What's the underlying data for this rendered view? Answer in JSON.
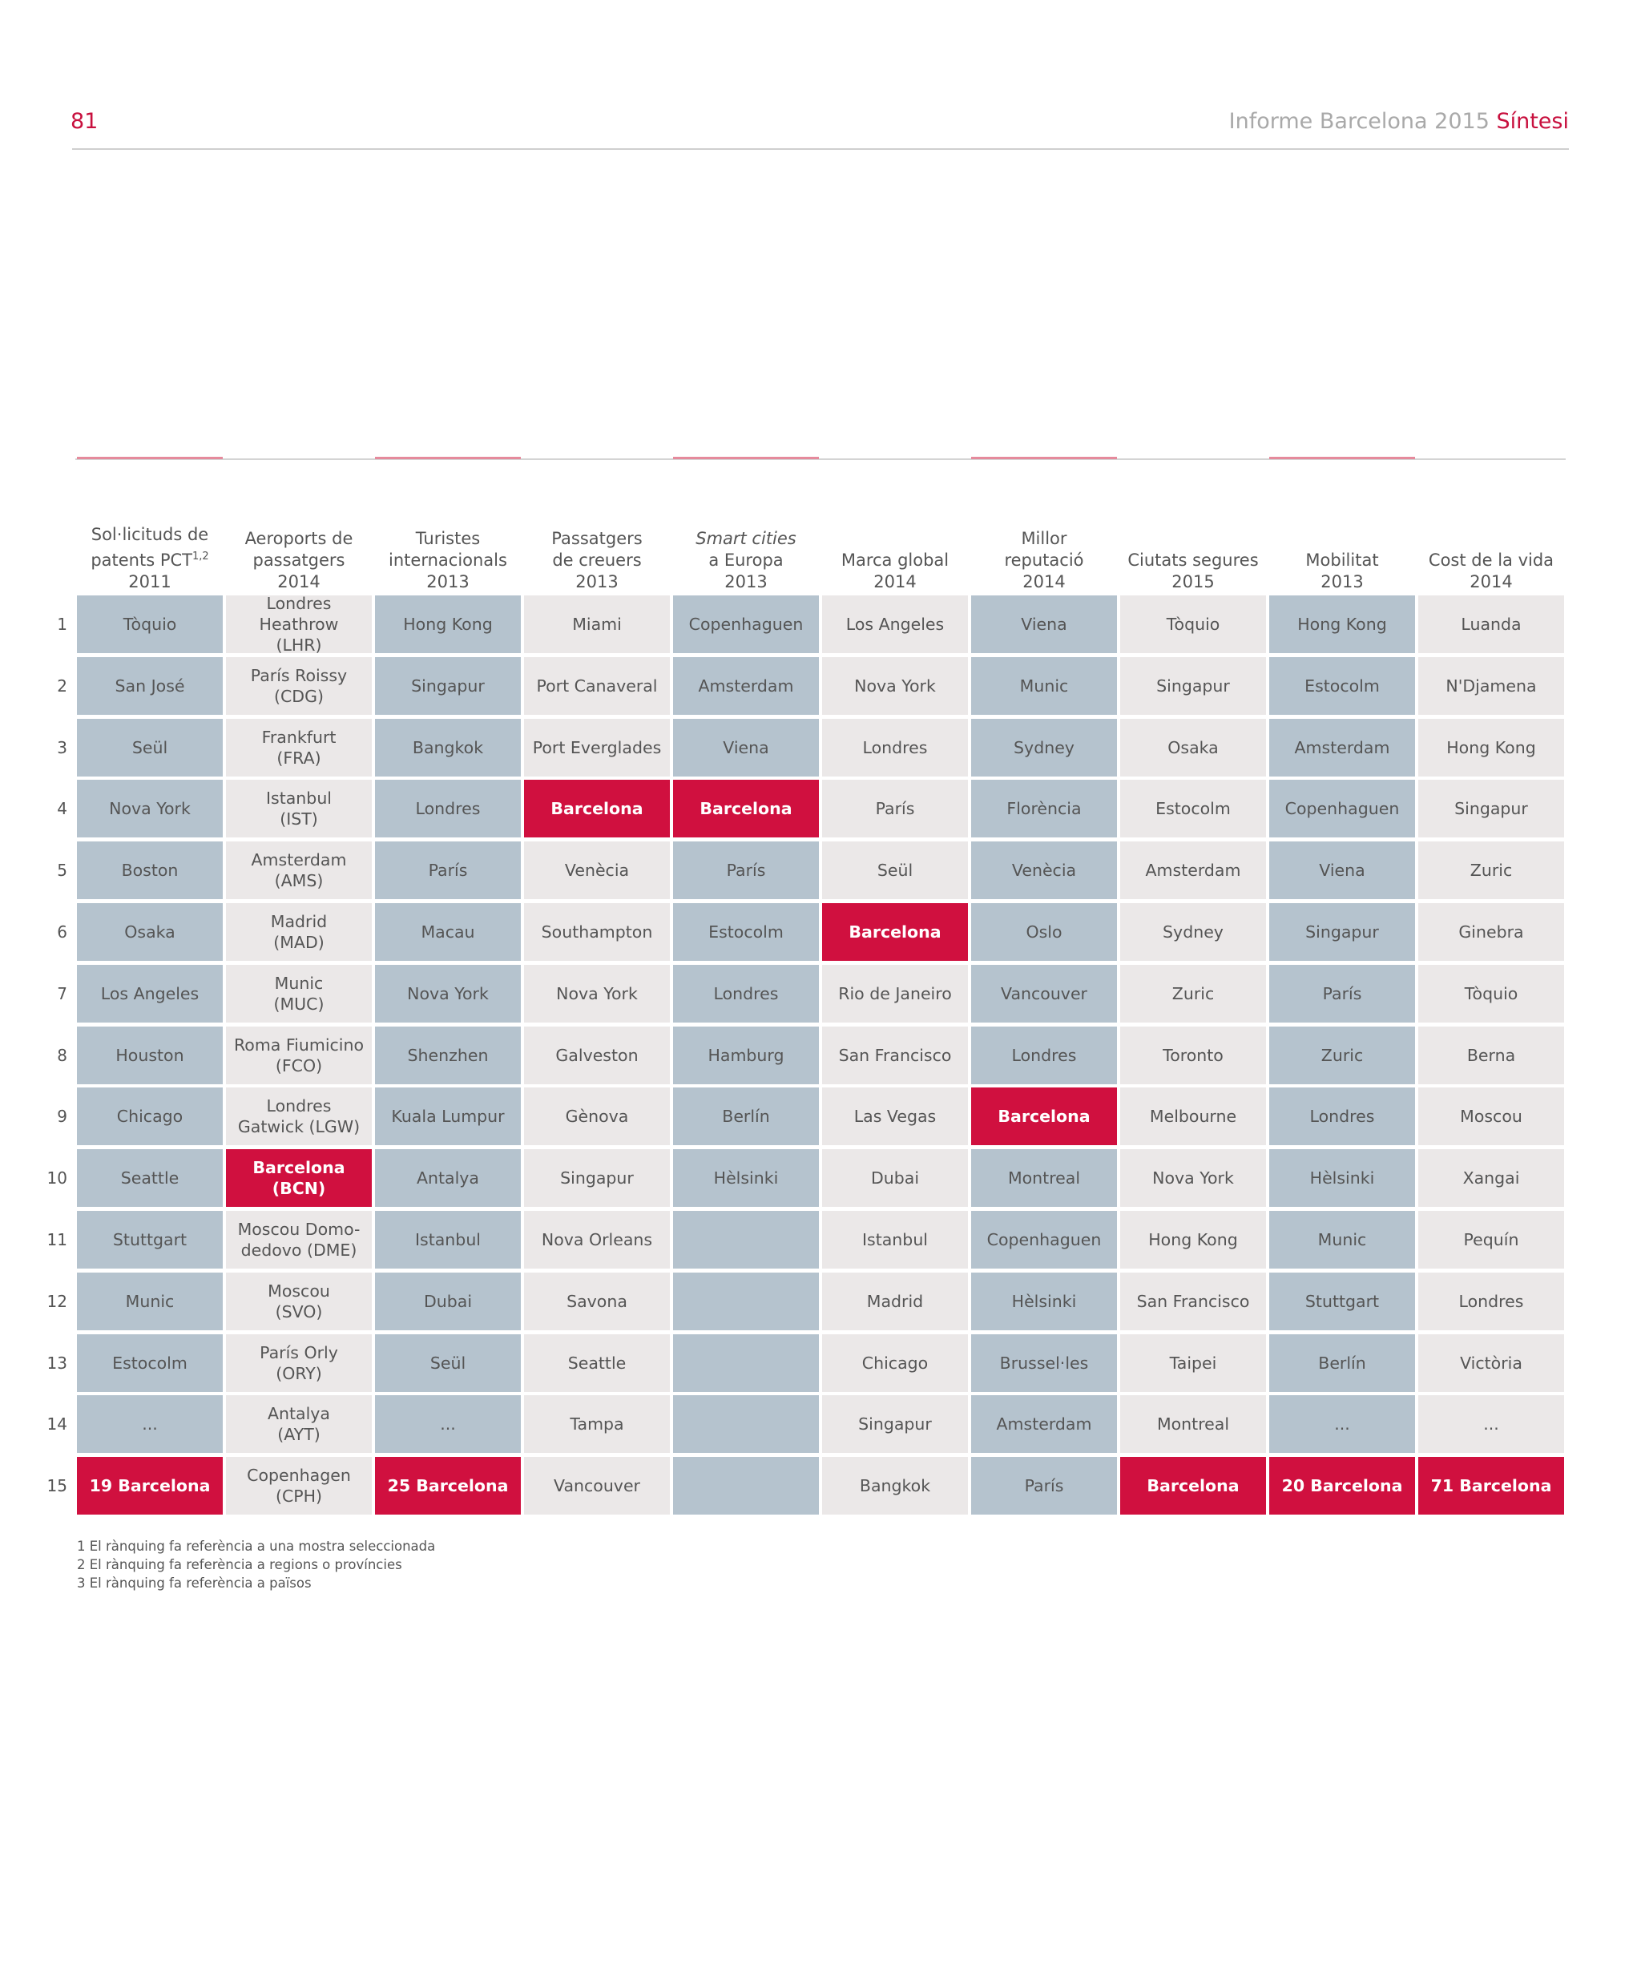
{
  "header": {
    "page_number": "81",
    "title_main": "Informe Barcelona 2015 ",
    "title_accent": "Síntesi"
  },
  "columns": [
    {
      "header_l1": "Sol·licituds de",
      "header_l2": "patents PCT",
      "header_sup": "1,2",
      "header_l3": "2011",
      "style": "blue",
      "cells": [
        "Tòquio",
        "San José",
        "Seül",
        "Nova York",
        "Boston",
        "Osaka",
        "Los Angeles",
        "Houston",
        "Chicago",
        "Seattle",
        "Stuttgart",
        "Munic",
        "Estocolm",
        "...",
        "19 Barcelona"
      ]
    },
    {
      "header_l1": "Aeroports de",
      "header_l2": "passatgers",
      "header_sup": "",
      "header_l3": "2014",
      "style": "grey",
      "cells": [
        "Londres Heathrow\n(LHR)",
        "París Roissy\n(CDG)",
        "Frankfurt\n(FRA)",
        "Istanbul\n(IST)",
        "Amsterdam\n(AMS)",
        "Madrid\n(MAD)",
        "Munic\n(MUC)",
        "Roma Fiumicino\n(FCO)",
        "Londres\nGatwick (LGW)",
        "Barcelona\n(BCN)",
        "Moscou Domo-\ndedovo (DME)",
        "Moscou\n(SVO)",
        "París Orly\n(ORY)",
        "Antalya\n(AYT)",
        "Copenhagen\n(CPH)"
      ]
    },
    {
      "header_l1": "Turistes",
      "header_l2": "internacionals",
      "header_sup": "",
      "header_l3": "2013",
      "style": "blue",
      "cells": [
        "Hong Kong",
        "Singapur",
        "Bangkok",
        "Londres",
        "París",
        "Macau",
        "Nova York",
        "Shenzhen",
        "Kuala Lumpur",
        "Antalya",
        "Istanbul",
        "Dubai",
        "Seül",
        "...",
        "25 Barcelona"
      ]
    },
    {
      "header_l1": "Passatgers",
      "header_l2": "de creuers",
      "header_sup": "",
      "header_l3": "2013",
      "style": "grey",
      "cells": [
        "Miami",
        "Port Canaveral",
        "Port Everglades",
        "Barcelona",
        "Venècia",
        "Southampton",
        "Nova York",
        "Galveston",
        "Gènova",
        "Singapur",
        "Nova Orleans",
        "Savona",
        "Seattle",
        "Tampa",
        "Vancouver"
      ]
    },
    {
      "header_l1": "Smart cities",
      "header_l2": "a Europa",
      "header_sup": "",
      "header_l3": "2013",
      "style": "blue",
      "italic_first": true,
      "cells": [
        "Copenhaguen",
        "Amsterdam",
        "Viena",
        "Barcelona",
        "París",
        "Estocolm",
        "Londres",
        "Hamburg",
        "Berlín",
        "Hèlsinki",
        "",
        "",
        "",
        "",
        ""
      ]
    },
    {
      "header_l1": "",
      "header_l2": "Marca global",
      "header_sup": "",
      "header_l3": "2014",
      "style": "grey",
      "cells": [
        "Los Angeles",
        "Nova York",
        "Londres",
        "París",
        "Seül",
        "Barcelona",
        "Rio de Janeiro",
        "San Francisco",
        "Las Vegas",
        "Dubai",
        "Istanbul",
        "Madrid",
        "Chicago",
        "Singapur",
        "Bangkok"
      ]
    },
    {
      "header_l1": "Millor",
      "header_l2": "reputació",
      "header_sup": "",
      "header_l3": "2014",
      "style": "blue",
      "cells": [
        "Viena",
        "Munic",
        "Sydney",
        "Florència",
        "Venècia",
        "Oslo",
        "Vancouver",
        "Londres",
        "Barcelona",
        "Montreal",
        "Copenhaguen",
        "Hèlsinki",
        "Brussel·les",
        "Amsterdam",
        "París"
      ]
    },
    {
      "header_l1": "",
      "header_l2": "Ciutats segures",
      "header_sup": "",
      "header_l3": "2015",
      "style": "grey",
      "cells": [
        "Tòquio",
        "Singapur",
        "Osaka",
        "Estocolm",
        "Amsterdam",
        "Sydney",
        "Zuric",
        "Toronto",
        "Melbourne",
        "Nova York",
        "Hong Kong",
        "San Francisco",
        "Taipei",
        "Montreal",
        "Barcelona"
      ]
    },
    {
      "header_l1": "",
      "header_l2": "Mobilitat",
      "header_sup": "",
      "header_l3": "2013",
      "style": "blue",
      "cells": [
        "Hong Kong",
        "Estocolm",
        "Amsterdam",
        "Copenhaguen",
        "Viena",
        "Singapur",
        "París",
        "Zuric",
        "Londres",
        "Hèlsinki",
        "Munic",
        "Stuttgart",
        "Berlín",
        "...",
        "20 Barcelona"
      ]
    },
    {
      "header_l1": "",
      "header_l2": "Cost de la vida",
      "header_sup": "",
      "header_l3": "2014",
      "style": "grey",
      "cells": [
        "Luanda",
        "N'Djamena",
        "Hong Kong",
        "Singapur",
        "Zuric",
        "Ginebra",
        "Tòquio",
        "Berna",
        "Moscou",
        "Xangai",
        "Pequín",
        "Londres",
        "Victòria",
        "...",
        "71 Barcelona"
      ]
    }
  ],
  "row_numbers": [
    "1",
    "2",
    "3",
    "4",
    "5",
    "6",
    "7",
    "8",
    "9",
    "10",
    "11",
    "12",
    "13",
    "14",
    "15"
  ],
  "footnotes": [
    "1 El rànquing fa referència a una mostra seleccionada",
    "2 El rànquing fa referència a regions o províncies",
    "3 El rànquing fa referència a països"
  ],
  "colors": {
    "accent": "#d0103f",
    "blue_cell": "#b5c3ce",
    "grey_cell": "#ebe8e8"
  }
}
